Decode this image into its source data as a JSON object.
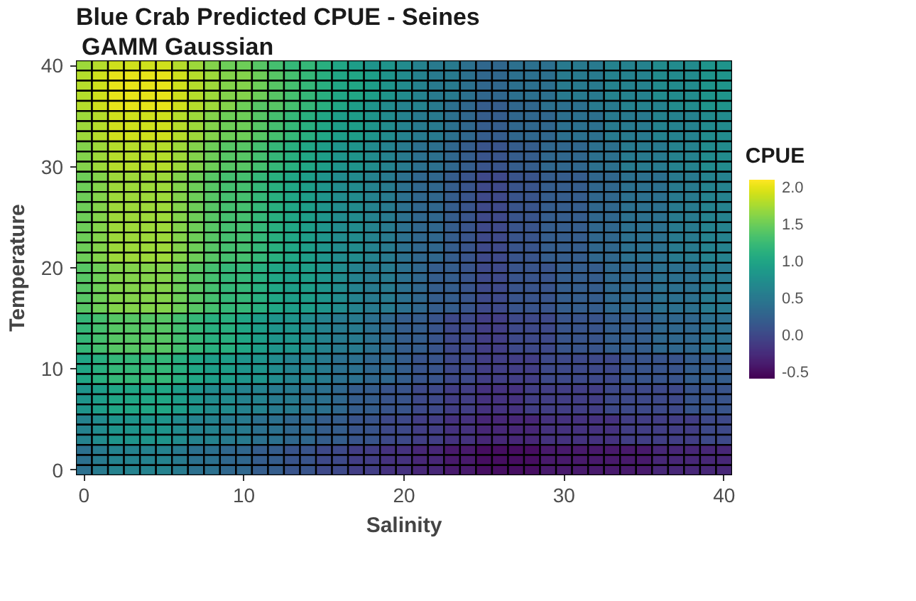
{
  "chart_data": {
    "type": "heatmap",
    "title": "Blue Crab Predicted CPUE - Seines",
    "subtitle": "GAMM Gaussian",
    "xlabel": "Salinity",
    "ylabel": "Temperature",
    "legend_title": "CPUE",
    "categories": [
      "0",
      null,
      null,
      null,
      null,
      null,
      null,
      null,
      null,
      null,
      "10",
      null,
      null,
      null,
      null,
      null,
      null,
      null,
      null,
      null,
      "20",
      null,
      null,
      null,
      null,
      null,
      null,
      null,
      null,
      null,
      "30",
      null,
      null,
      null,
      null,
      null,
      null,
      null,
      null,
      null,
      "40"
    ],
    "y_categories": [
      "40",
      null,
      null,
      null,
      null,
      null,
      null,
      null,
      null,
      null,
      "30",
      null,
      null,
      null,
      null,
      null,
      null,
      null,
      null,
      null,
      "20",
      null,
      null,
      null,
      null,
      null,
      null,
      null,
      null,
      null,
      "10",
      null,
      null,
      null,
      null,
      null,
      null,
      null,
      null,
      null,
      "0"
    ],
    "clim": [
      -0.6,
      2.1
    ],
    "cticks": [
      -0.5,
      {
        "value": 0,
        "label": "0.0"
      },
      0.5,
      {
        "value": 1,
        "label": "1.0"
      },
      1.5,
      {
        "value": 2,
        "label": "2.0"
      }
    ],
    "cells": [
      [
        1.7,
        1.8,
        1.9,
        1.9,
        1.9,
        1.9,
        1.8,
        1.7,
        1.6,
        1.5,
        1.5,
        1.4,
        1.3,
        1.2,
        1.2,
        1.1,
        1.0,
        0.9,
        0.8,
        0.8,
        0.7,
        0.6,
        0.5,
        0.5,
        0.4,
        0.3,
        0.3,
        0.4,
        0.4,
        0.4,
        0.5,
        0.5,
        0.5,
        0.6,
        0.6,
        0.6,
        0.7,
        0.7,
        0.7,
        0.8,
        0.8
      ],
      [
        1.8,
        1.9,
        2.0,
        2.0,
        2.0,
        2.0,
        1.9,
        1.8,
        1.7,
        1.6,
        1.6,
        1.5,
        1.4,
        1.3,
        1.2,
        1.1,
        1.0,
        1.0,
        0.9,
        0.8,
        0.7,
        0.6,
        0.5,
        0.5,
        0.4,
        0.3,
        0.3,
        0.4,
        0.4,
        0.4,
        0.5,
        0.5,
        0.5,
        0.6,
        0.6,
        0.6,
        0.7,
        0.7,
        0.7,
        0.8,
        0.8
      ],
      [
        1.8,
        1.9,
        2.0,
        2.0,
        2.0,
        2.0,
        1.9,
        1.8,
        1.7,
        1.6,
        1.6,
        1.5,
        1.4,
        1.3,
        1.2,
        1.1,
        1.0,
        1.0,
        0.9,
        0.8,
        0.7,
        0.6,
        0.5,
        0.5,
        0.4,
        0.3,
        0.3,
        0.4,
        0.4,
        0.4,
        0.5,
        0.5,
        0.5,
        0.6,
        0.6,
        0.6,
        0.7,
        0.7,
        0.7,
        0.8,
        0.8
      ],
      [
        1.8,
        1.9,
        2.0,
        2.0,
        2.0,
        2.0,
        1.9,
        1.8,
        1.7,
        1.6,
        1.6,
        1.5,
        1.4,
        1.3,
        1.2,
        1.1,
        1.0,
        1.0,
        0.9,
        0.8,
        0.7,
        0.6,
        0.5,
        0.5,
        0.4,
        0.3,
        0.3,
        0.4,
        0.4,
        0.4,
        0.5,
        0.5,
        0.5,
        0.6,
        0.6,
        0.6,
        0.7,
        0.7,
        0.7,
        0.8,
        0.8
      ],
      [
        1.8,
        1.9,
        2.0,
        2.0,
        2.0,
        2.0,
        1.9,
        1.8,
        1.7,
        1.6,
        1.5,
        1.4,
        1.4,
        1.3,
        1.2,
        1.1,
        1.0,
        0.9,
        0.8,
        0.7,
        0.6,
        0.6,
        0.5,
        0.4,
        0.3,
        0.2,
        0.2,
        0.3,
        0.3,
        0.4,
        0.4,
        0.4,
        0.5,
        0.5,
        0.6,
        0.6,
        0.6,
        0.7,
        0.7,
        0.8,
        0.8
      ],
      [
        1.7,
        1.8,
        1.9,
        1.9,
        1.9,
        1.9,
        1.8,
        1.7,
        1.6,
        1.5,
        1.5,
        1.4,
        1.3,
        1.2,
        1.1,
        1.0,
        0.9,
        0.9,
        0.8,
        0.7,
        0.6,
        0.5,
        0.5,
        0.4,
        0.3,
        0.2,
        0.2,
        0.3,
        0.3,
        0.3,
        0.4,
        0.4,
        0.4,
        0.5,
        0.5,
        0.5,
        0.6,
        0.6,
        0.6,
        0.7,
        0.7
      ],
      [
        1.7,
        1.8,
        1.9,
        1.9,
        1.9,
        1.9,
        1.8,
        1.7,
        1.6,
        1.5,
        1.5,
        1.4,
        1.3,
        1.2,
        1.1,
        1.0,
        0.9,
        0.9,
        0.8,
        0.7,
        0.6,
        0.5,
        0.5,
        0.4,
        0.3,
        0.2,
        0.2,
        0.3,
        0.3,
        0.3,
        0.4,
        0.4,
        0.4,
        0.5,
        0.5,
        0.5,
        0.6,
        0.6,
        0.6,
        0.7,
        0.7
      ],
      [
        1.7,
        1.8,
        1.9,
        1.9,
        1.9,
        1.9,
        1.8,
        1.7,
        1.6,
        1.5,
        1.5,
        1.4,
        1.3,
        1.2,
        1.1,
        1.0,
        0.9,
        0.9,
        0.8,
        0.7,
        0.6,
        0.5,
        0.5,
        0.4,
        0.3,
        0.2,
        0.2,
        0.3,
        0.3,
        0.3,
        0.4,
        0.4,
        0.4,
        0.5,
        0.5,
        0.5,
        0.6,
        0.6,
        0.6,
        0.7,
        0.7
      ],
      [
        1.6,
        1.7,
        1.8,
        1.8,
        1.8,
        1.8,
        1.7,
        1.6,
        1.5,
        1.4,
        1.4,
        1.3,
        1.2,
        1.1,
        1.0,
        0.9,
        0.8,
        0.8,
        0.7,
        0.6,
        0.5,
        0.4,
        0.4,
        0.3,
        0.2,
        0.1,
        0.1,
        0.2,
        0.2,
        0.3,
        0.3,
        0.3,
        0.4,
        0.4,
        0.5,
        0.5,
        0.5,
        0.6,
        0.6,
        0.7,
        0.7
      ],
      [
        1.6,
        1.7,
        1.8,
        1.8,
        1.8,
        1.8,
        1.7,
        1.6,
        1.5,
        1.4,
        1.4,
        1.3,
        1.2,
        1.1,
        1.0,
        0.9,
        0.8,
        0.8,
        0.7,
        0.6,
        0.5,
        0.4,
        0.4,
        0.3,
        0.2,
        0.1,
        0.1,
        0.2,
        0.2,
        0.3,
        0.3,
        0.3,
        0.4,
        0.4,
        0.5,
        0.5,
        0.5,
        0.6,
        0.6,
        0.7,
        0.7
      ],
      [
        1.6,
        1.7,
        1.8,
        1.8,
        1.8,
        1.8,
        1.7,
        1.6,
        1.5,
        1.4,
        1.4,
        1.3,
        1.2,
        1.1,
        1.0,
        0.9,
        0.8,
        0.8,
        0.7,
        0.6,
        0.5,
        0.4,
        0.4,
        0.3,
        0.2,
        0.1,
        0.1,
        0.2,
        0.2,
        0.3,
        0.3,
        0.3,
        0.4,
        0.4,
        0.5,
        0.5,
        0.5,
        0.6,
        0.6,
        0.7,
        0.7
      ],
      [
        1.5,
        1.6,
        1.7,
        1.7,
        1.7,
        1.7,
        1.6,
        1.5,
        1.4,
        1.3,
        1.3,
        1.2,
        1.1,
        1.0,
        0.9,
        0.8,
        0.7,
        0.7,
        0.6,
        0.5,
        0.4,
        0.3,
        0.3,
        0.2,
        0.1,
        0.0,
        0.0,
        0.1,
        0.1,
        0.2,
        0.2,
        0.2,
        0.3,
        0.3,
        0.4,
        0.4,
        0.4,
        0.5,
        0.5,
        0.6,
        0.6
      ],
      [
        1.5,
        1.6,
        1.7,
        1.7,
        1.7,
        1.7,
        1.6,
        1.5,
        1.4,
        1.3,
        1.3,
        1.2,
        1.1,
        1.0,
        0.9,
        0.8,
        0.7,
        0.7,
        0.6,
        0.5,
        0.4,
        0.3,
        0.3,
        0.2,
        0.1,
        0.0,
        0.0,
        0.1,
        0.1,
        0.2,
        0.2,
        0.2,
        0.3,
        0.3,
        0.4,
        0.4,
        0.4,
        0.5,
        0.5,
        0.6,
        0.6
      ],
      [
        1.5,
        1.6,
        1.7,
        1.7,
        1.7,
        1.7,
        1.6,
        1.5,
        1.4,
        1.3,
        1.3,
        1.2,
        1.1,
        1.0,
        0.9,
        0.8,
        0.7,
        0.7,
        0.6,
        0.5,
        0.4,
        0.3,
        0.3,
        0.2,
        0.1,
        0.0,
        0.0,
        0.1,
        0.1,
        0.2,
        0.2,
        0.2,
        0.3,
        0.3,
        0.4,
        0.4,
        0.4,
        0.5,
        0.5,
        0.6,
        0.6
      ],
      [
        1.5,
        1.6,
        1.7,
        1.7,
        1.7,
        1.7,
        1.6,
        1.5,
        1.4,
        1.3,
        1.3,
        1.2,
        1.1,
        1.0,
        0.9,
        0.8,
        0.7,
        0.7,
        0.6,
        0.5,
        0.4,
        0.3,
        0.3,
        0.2,
        0.1,
        0.0,
        0.0,
        0.1,
        0.1,
        0.2,
        0.2,
        0.2,
        0.3,
        0.3,
        0.4,
        0.4,
        0.4,
        0.5,
        0.5,
        0.6,
        0.6
      ],
      [
        1.5,
        1.6,
        1.7,
        1.7,
        1.7,
        1.7,
        1.6,
        1.5,
        1.4,
        1.3,
        1.3,
        1.2,
        1.1,
        1.0,
        0.9,
        0.8,
        0.7,
        0.7,
        0.6,
        0.5,
        0.4,
        0.3,
        0.3,
        0.2,
        0.1,
        0.0,
        0.0,
        0.1,
        0.1,
        0.2,
        0.2,
        0.2,
        0.3,
        0.3,
        0.4,
        0.4,
        0.4,
        0.5,
        0.5,
        0.6,
        0.6
      ],
      [
        1.5,
        1.6,
        1.7,
        1.7,
        1.7,
        1.7,
        1.6,
        1.5,
        1.4,
        1.3,
        1.3,
        1.2,
        1.1,
        1.0,
        0.9,
        0.8,
        0.7,
        0.7,
        0.6,
        0.5,
        0.4,
        0.3,
        0.3,
        0.2,
        0.1,
        0.0,
        0.0,
        0.1,
        0.1,
        0.2,
        0.2,
        0.2,
        0.3,
        0.3,
        0.4,
        0.4,
        0.4,
        0.5,
        0.5,
        0.6,
        0.6
      ],
      [
        1.5,
        1.6,
        1.7,
        1.7,
        1.7,
        1.7,
        1.6,
        1.5,
        1.4,
        1.3,
        1.3,
        1.2,
        1.1,
        1.0,
        0.9,
        0.8,
        0.7,
        0.7,
        0.6,
        0.5,
        0.4,
        0.3,
        0.3,
        0.2,
        0.1,
        0.0,
        0.0,
        0.1,
        0.1,
        0.2,
        0.2,
        0.2,
        0.3,
        0.3,
        0.4,
        0.4,
        0.4,
        0.5,
        0.5,
        0.6,
        0.6
      ],
      [
        1.5,
        1.6,
        1.7,
        1.7,
        1.7,
        1.7,
        1.6,
        1.5,
        1.4,
        1.3,
        1.3,
        1.2,
        1.1,
        1.0,
        0.9,
        0.8,
        0.7,
        0.7,
        0.6,
        0.5,
        0.4,
        0.3,
        0.3,
        0.2,
        0.1,
        0.0,
        0.0,
        0.1,
        0.1,
        0.2,
        0.2,
        0.2,
        0.3,
        0.3,
        0.4,
        0.4,
        0.4,
        0.5,
        0.5,
        0.6,
        0.6
      ],
      [
        1.5,
        1.6,
        1.7,
        1.7,
        1.7,
        1.7,
        1.6,
        1.5,
        1.4,
        1.3,
        1.3,
        1.2,
        1.1,
        1.0,
        0.9,
        0.8,
        0.7,
        0.7,
        0.6,
        0.5,
        0.4,
        0.3,
        0.3,
        0.2,
        0.1,
        0.0,
        0.0,
        0.1,
        0.1,
        0.2,
        0.2,
        0.2,
        0.3,
        0.3,
        0.4,
        0.4,
        0.4,
        0.5,
        0.5,
        0.6,
        0.6
      ],
      [
        1.4,
        1.5,
        1.6,
        1.6,
        1.6,
        1.6,
        1.5,
        1.4,
        1.3,
        1.2,
        1.2,
        1.1,
        1.0,
        0.9,
        0.9,
        0.8,
        0.7,
        0.6,
        0.5,
        0.5,
        0.4,
        0.3,
        0.2,
        0.2,
        0.1,
        0.0,
        0.0,
        0.1,
        0.1,
        0.1,
        0.2,
        0.2,
        0.2,
        0.3,
        0.3,
        0.3,
        0.4,
        0.4,
        0.4,
        0.5,
        0.5
      ],
      [
        1.4,
        1.5,
        1.6,
        1.6,
        1.6,
        1.6,
        1.5,
        1.4,
        1.3,
        1.2,
        1.2,
        1.1,
        1.0,
        0.9,
        0.9,
        0.8,
        0.7,
        0.6,
        0.5,
        0.5,
        0.4,
        0.3,
        0.2,
        0.2,
        0.1,
        0.0,
        0.0,
        0.1,
        0.1,
        0.1,
        0.2,
        0.2,
        0.2,
        0.3,
        0.3,
        0.3,
        0.4,
        0.4,
        0.4,
        0.5,
        0.5
      ],
      [
        1.4,
        1.5,
        1.6,
        1.6,
        1.6,
        1.6,
        1.5,
        1.4,
        1.3,
        1.2,
        1.2,
        1.1,
        1.0,
        0.9,
        0.9,
        0.8,
        0.7,
        0.6,
        0.5,
        0.5,
        0.4,
        0.3,
        0.2,
        0.2,
        0.1,
        0.0,
        0.0,
        0.1,
        0.1,
        0.1,
        0.2,
        0.2,
        0.2,
        0.3,
        0.3,
        0.3,
        0.4,
        0.4,
        0.4,
        0.5,
        0.5
      ],
      [
        1.4,
        1.5,
        1.6,
        1.6,
        1.6,
        1.6,
        1.5,
        1.4,
        1.3,
        1.2,
        1.2,
        1.1,
        1.0,
        0.9,
        0.9,
        0.8,
        0.7,
        0.6,
        0.5,
        0.5,
        0.4,
        0.3,
        0.2,
        0.2,
        0.1,
        0.0,
        0.0,
        0.1,
        0.1,
        0.1,
        0.2,
        0.2,
        0.2,
        0.3,
        0.3,
        0.3,
        0.4,
        0.4,
        0.4,
        0.5,
        0.5
      ],
      [
        1.4,
        1.5,
        1.6,
        1.6,
        1.6,
        1.6,
        1.5,
        1.4,
        1.3,
        1.2,
        1.2,
        1.1,
        1.0,
        0.9,
        0.9,
        0.8,
        0.7,
        0.6,
        0.5,
        0.5,
        0.4,
        0.3,
        0.2,
        0.2,
        0.1,
        0.0,
        0.0,
        0.1,
        0.1,
        0.1,
        0.2,
        0.2,
        0.2,
        0.3,
        0.3,
        0.3,
        0.4,
        0.4,
        0.4,
        0.5,
        0.5
      ],
      [
        1.2,
        1.3,
        1.4,
        1.4,
        1.4,
        1.4,
        1.3,
        1.2,
        1.1,
        1.1,
        1.0,
        0.9,
        0.8,
        0.8,
        0.7,
        0.6,
        0.5,
        0.5,
        0.4,
        0.3,
        0.2,
        0.2,
        0.1,
        0.0,
        0.0,
        -0.1,
        -0.1,
        0.0,
        0.0,
        0.0,
        0.1,
        0.1,
        0.1,
        0.2,
        0.2,
        0.2,
        0.3,
        0.3,
        0.3,
        0.4,
        0.4
      ],
      [
        1.2,
        1.3,
        1.4,
        1.4,
        1.4,
        1.4,
        1.3,
        1.2,
        1.1,
        1.1,
        1.0,
        0.9,
        0.8,
        0.8,
        0.7,
        0.6,
        0.5,
        0.5,
        0.4,
        0.3,
        0.2,
        0.2,
        0.1,
        0.0,
        0.0,
        -0.1,
        -0.1,
        0.0,
        0.0,
        0.0,
        0.1,
        0.1,
        0.1,
        0.2,
        0.2,
        0.2,
        0.3,
        0.3,
        0.3,
        0.4,
        0.4
      ],
      [
        1.2,
        1.3,
        1.4,
        1.4,
        1.4,
        1.4,
        1.3,
        1.2,
        1.1,
        1.1,
        1.0,
        0.9,
        0.8,
        0.8,
        0.7,
        0.6,
        0.5,
        0.5,
        0.4,
        0.3,
        0.2,
        0.2,
        0.1,
        0.0,
        0.0,
        -0.1,
        -0.1,
        0.0,
        0.0,
        0.0,
        0.1,
        0.1,
        0.1,
        0.2,
        0.2,
        0.2,
        0.3,
        0.3,
        0.3,
        0.4,
        0.4
      ],
      [
        1.2,
        1.3,
        1.4,
        1.4,
        1.4,
        1.4,
        1.3,
        1.2,
        1.1,
        1.1,
        1.0,
        0.9,
        0.8,
        0.8,
        0.7,
        0.6,
        0.5,
        0.5,
        0.4,
        0.3,
        0.2,
        0.2,
        0.1,
        0.0,
        0.0,
        -0.1,
        -0.1,
        0.0,
        0.0,
        0.0,
        0.1,
        0.1,
        0.1,
        0.2,
        0.2,
        0.2,
        0.3,
        0.3,
        0.3,
        0.4,
        0.4
      ],
      [
        1.0,
        1.1,
        1.2,
        1.2,
        1.2,
        1.2,
        1.1,
        1.0,
        0.9,
        0.9,
        0.8,
        0.8,
        0.7,
        0.6,
        0.6,
        0.5,
        0.4,
        0.4,
        0.3,
        0.3,
        0.2,
        0.1,
        0.1,
        0.0,
        0.0,
        -0.1,
        -0.1,
        -0.1,
        -0.1,
        0.0,
        0.0,
        0.0,
        0.0,
        0.0,
        0.1,
        0.1,
        0.1,
        0.1,
        0.2,
        0.2,
        0.2
      ],
      [
        1.0,
        1.1,
        1.2,
        1.2,
        1.2,
        1.2,
        1.1,
        1.0,
        0.9,
        0.9,
        0.8,
        0.8,
        0.7,
        0.6,
        0.6,
        0.5,
        0.4,
        0.4,
        0.3,
        0.3,
        0.2,
        0.1,
        0.1,
        0.0,
        0.0,
        -0.1,
        -0.1,
        -0.1,
        -0.1,
        0.0,
        0.0,
        0.0,
        0.0,
        0.0,
        0.1,
        0.1,
        0.1,
        0.1,
        0.2,
        0.2,
        0.2
      ],
      [
        1.0,
        1.1,
        1.2,
        1.2,
        1.2,
        1.2,
        1.1,
        1.0,
        0.9,
        0.9,
        0.8,
        0.8,
        0.7,
        0.6,
        0.6,
        0.5,
        0.4,
        0.4,
        0.3,
        0.3,
        0.2,
        0.1,
        0.1,
        0.0,
        0.0,
        -0.1,
        -0.1,
        -0.1,
        -0.1,
        0.0,
        0.0,
        0.0,
        0.0,
        0.0,
        0.1,
        0.1,
        0.1,
        0.1,
        0.2,
        0.2,
        0.2
      ],
      [
        0.8,
        0.9,
        1.0,
        1.0,
        1.0,
        1.0,
        0.9,
        0.8,
        0.7,
        0.7,
        0.6,
        0.6,
        0.5,
        0.5,
        0.4,
        0.4,
        0.3,
        0.2,
        0.2,
        0.1,
        0.1,
        0.0,
        0.0,
        -0.1,
        -0.1,
        -0.2,
        -0.2,
        -0.2,
        -0.1,
        -0.1,
        -0.1,
        -0.1,
        -0.1,
        0.0,
        0.0,
        0.0,
        0.0,
        0.0,
        0.1,
        0.1,
        0.1
      ],
      [
        0.8,
        0.9,
        1.0,
        1.0,
        1.0,
        1.0,
        0.9,
        0.8,
        0.7,
        0.7,
        0.6,
        0.6,
        0.5,
        0.5,
        0.4,
        0.4,
        0.3,
        0.2,
        0.2,
        0.1,
        0.1,
        0.0,
        0.0,
        -0.1,
        -0.1,
        -0.2,
        -0.2,
        -0.2,
        -0.1,
        -0.1,
        -0.1,
        -0.1,
        -0.1,
        0.0,
        0.0,
        0.0,
        0.0,
        0.0,
        0.1,
        0.1,
        0.1
      ],
      [
        0.8,
        0.9,
        1.0,
        1.0,
        1.0,
        1.0,
        0.9,
        0.8,
        0.7,
        0.7,
        0.6,
        0.6,
        0.5,
        0.5,
        0.4,
        0.4,
        0.3,
        0.2,
        0.2,
        0.1,
        0.1,
        0.0,
        0.0,
        -0.1,
        -0.1,
        -0.2,
        -0.2,
        -0.2,
        -0.1,
        -0.1,
        -0.1,
        -0.1,
        -0.1,
        0.0,
        0.0,
        0.0,
        0.0,
        0.0,
        0.1,
        0.1,
        0.1
      ],
      [
        0.6,
        0.7,
        0.8,
        0.8,
        0.8,
        0.8,
        0.7,
        0.6,
        0.6,
        0.5,
        0.5,
        0.4,
        0.4,
        0.3,
        0.3,
        0.2,
        0.2,
        0.1,
        0.1,
        0.0,
        0.0,
        -0.1,
        -0.1,
        -0.2,
        -0.2,
        -0.3,
        -0.3,
        -0.3,
        -0.3,
        -0.2,
        -0.2,
        -0.2,
        -0.2,
        -0.2,
        -0.1,
        -0.1,
        -0.1,
        -0.1,
        -0.1,
        0.0,
        0.0
      ],
      [
        0.6,
        0.7,
        0.8,
        0.8,
        0.8,
        0.8,
        0.7,
        0.6,
        0.6,
        0.5,
        0.5,
        0.4,
        0.4,
        0.3,
        0.3,
        0.2,
        0.2,
        0.1,
        0.1,
        0.0,
        0.0,
        -0.1,
        -0.1,
        -0.2,
        -0.2,
        -0.3,
        -0.3,
        -0.3,
        -0.3,
        -0.2,
        -0.2,
        -0.2,
        -0.2,
        -0.2,
        -0.1,
        -0.1,
        -0.1,
        -0.1,
        -0.1,
        0.0,
        0.0
      ],
      [
        0.6,
        0.7,
        0.8,
        0.8,
        0.8,
        0.8,
        0.7,
        0.6,
        0.6,
        0.5,
        0.5,
        0.4,
        0.4,
        0.3,
        0.3,
        0.2,
        0.2,
        0.1,
        0.1,
        0.0,
        0.0,
        -0.1,
        -0.1,
        -0.2,
        -0.2,
        -0.3,
        -0.3,
        -0.3,
        -0.3,
        -0.2,
        -0.2,
        -0.2,
        -0.2,
        -0.2,
        -0.1,
        -0.1,
        -0.1,
        -0.1,
        -0.1,
        0.0,
        0.0
      ],
      [
        0.4,
        0.5,
        0.6,
        0.6,
        0.6,
        0.6,
        0.5,
        0.4,
        0.4,
        0.3,
        0.3,
        0.2,
        0.2,
        0.1,
        0.1,
        0.0,
        0.0,
        -0.1,
        -0.1,
        -0.2,
        -0.2,
        -0.3,
        -0.3,
        -0.4,
        -0.4,
        -0.5,
        -0.5,
        -0.5,
        -0.5,
        -0.4,
        -0.4,
        -0.4,
        -0.4,
        -0.4,
        -0.4,
        -0.4,
        -0.3,
        -0.3,
        -0.3,
        -0.3,
        -0.3
      ],
      [
        0.4,
        0.5,
        0.6,
        0.6,
        0.6,
        0.6,
        0.5,
        0.4,
        0.4,
        0.3,
        0.3,
        0.2,
        0.2,
        0.1,
        0.1,
        0.0,
        0.0,
        -0.1,
        -0.1,
        -0.2,
        -0.2,
        -0.3,
        -0.3,
        -0.4,
        -0.4,
        -0.5,
        -0.5,
        -0.5,
        -0.5,
        -0.4,
        -0.4,
        -0.4,
        -0.4,
        -0.4,
        -0.4,
        -0.4,
        -0.3,
        -0.3,
        -0.3,
        -0.3,
        -0.3
      ],
      [
        0.4,
        0.5,
        0.6,
        0.6,
        0.6,
        0.6,
        0.5,
        0.4,
        0.4,
        0.3,
        0.3,
        0.2,
        0.2,
        0.1,
        0.1,
        0.0,
        0.0,
        -0.1,
        -0.1,
        -0.2,
        -0.2,
        -0.3,
        -0.3,
        -0.4,
        -0.4,
        -0.5,
        -0.5,
        -0.5,
        -0.5,
        -0.4,
        -0.4,
        -0.4,
        -0.4,
        -0.4,
        -0.4,
        -0.4,
        -0.3,
        -0.3,
        -0.3,
        -0.3,
        -0.3
      ]
    ]
  }
}
